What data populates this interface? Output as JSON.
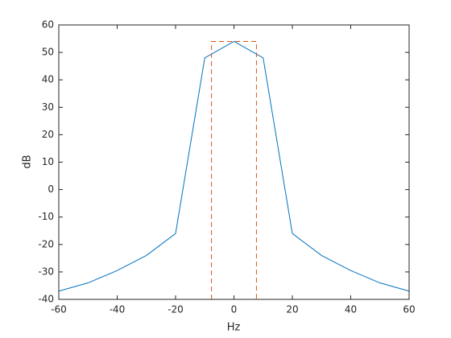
{
  "chart_data": {
    "type": "line",
    "xlabel": "Hz",
    "ylabel": "dB",
    "xlim": [
      -60,
      60
    ],
    "ylim": [
      -40,
      60
    ],
    "xticks": [
      -60,
      -40,
      -20,
      0,
      20,
      40,
      60
    ],
    "yticks": [
      -40,
      -30,
      -20,
      -10,
      0,
      10,
      20,
      30,
      40,
      50,
      60
    ],
    "series": [
      {
        "color": "#0072BD",
        "dash": false,
        "x": [
          -60,
          -50,
          -40,
          -30,
          -20,
          -10,
          0,
          10,
          20,
          30,
          40,
          50,
          60
        ],
        "values": [
          -37,
          -34,
          -29.5,
          -24,
          -16,
          48,
          54,
          48,
          -16,
          -24,
          -29.5,
          -34,
          -37
        ]
      },
      {
        "color": "#D95319",
        "dash": true,
        "x": [
          -7.7,
          -7.7,
          7.7,
          7.7
        ],
        "values": [
          -40,
          54,
          54,
          -40
        ]
      }
    ]
  }
}
